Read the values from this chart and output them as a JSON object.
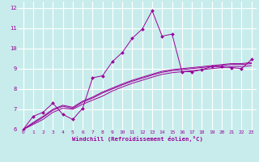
{
  "xlabel": "Windchill (Refroidissement éolien,°C)",
  "background_color": "#c8ecec",
  "grid_color": "#ffffff",
  "line_color": "#990099",
  "xlim": [
    -0.5,
    23.5
  ],
  "ylim": [
    6,
    12.3
  ],
  "xticks": [
    0,
    1,
    2,
    3,
    4,
    5,
    6,
    7,
    8,
    9,
    10,
    11,
    12,
    13,
    14,
    15,
    16,
    17,
    18,
    19,
    20,
    21,
    22,
    23
  ],
  "yticks": [
    6,
    7,
    8,
    9,
    10,
    11,
    12
  ],
  "curve1_x": [
    0,
    1,
    2,
    3,
    4,
    5,
    6,
    7,
    8,
    9,
    10,
    11,
    12,
    13,
    14,
    15,
    16,
    17,
    18,
    19,
    20,
    21,
    22,
    23
  ],
  "curve1_y": [
    6.0,
    6.65,
    6.85,
    7.3,
    6.75,
    6.5,
    7.05,
    8.55,
    8.65,
    9.35,
    9.8,
    10.5,
    10.95,
    11.85,
    10.6,
    10.7,
    8.85,
    8.85,
    8.95,
    9.1,
    9.1,
    9.05,
    9.0,
    9.45
  ],
  "curve2_x": [
    0,
    1,
    2,
    3,
    4,
    5,
    6,
    7,
    8,
    9,
    10,
    11,
    12,
    13,
    14,
    15,
    16,
    17,
    18,
    19,
    20,
    21,
    22,
    23
  ],
  "curve2_y": [
    6.0,
    6.25,
    6.5,
    6.85,
    7.05,
    7.0,
    7.25,
    7.45,
    7.65,
    7.9,
    8.1,
    8.28,
    8.43,
    8.58,
    8.72,
    8.8,
    8.85,
    8.9,
    8.95,
    9.0,
    9.05,
    9.1,
    9.1,
    9.15
  ],
  "curve3_x": [
    0,
    1,
    2,
    3,
    4,
    5,
    6,
    7,
    8,
    9,
    10,
    11,
    12,
    13,
    14,
    15,
    16,
    17,
    18,
    19,
    20,
    21,
    22,
    23
  ],
  "curve3_y": [
    6.0,
    6.3,
    6.6,
    6.95,
    7.15,
    7.05,
    7.35,
    7.55,
    7.8,
    8.0,
    8.2,
    8.38,
    8.53,
    8.68,
    8.82,
    8.9,
    8.95,
    9.0,
    9.05,
    9.1,
    9.15,
    9.2,
    9.2,
    9.25
  ],
  "curve4_x": [
    0,
    1,
    2,
    3,
    4,
    5,
    6,
    7,
    8,
    9,
    10,
    11,
    12,
    13,
    14,
    15,
    16,
    17,
    18,
    19,
    20,
    21,
    22,
    23
  ],
  "curve4_y": [
    6.0,
    6.35,
    6.65,
    7.0,
    7.2,
    7.1,
    7.4,
    7.6,
    7.85,
    8.05,
    8.25,
    8.43,
    8.58,
    8.73,
    8.87,
    8.95,
    9.0,
    9.05,
    9.1,
    9.15,
    9.2,
    9.25,
    9.25,
    9.3
  ]
}
